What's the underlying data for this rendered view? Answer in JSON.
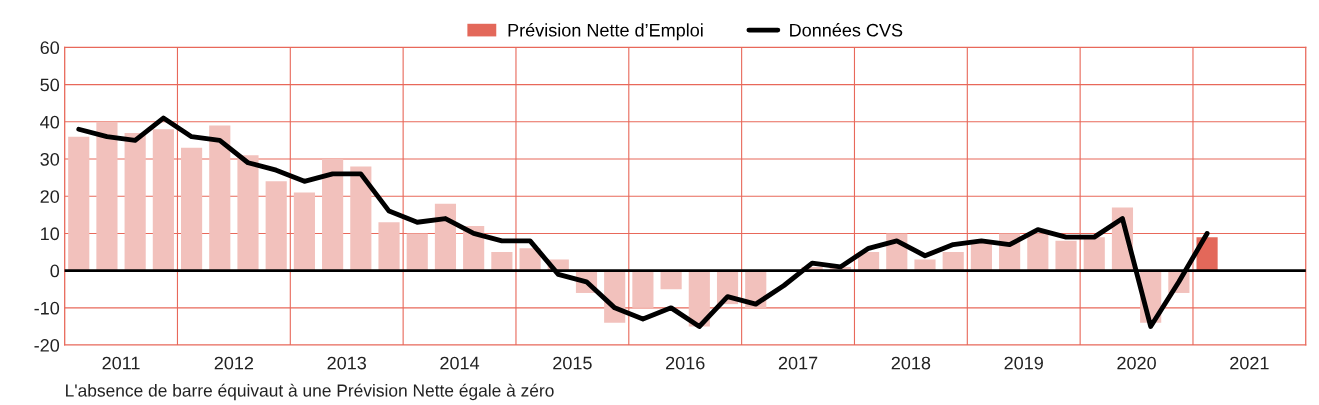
{
  "chart_data": {
    "type": "bar",
    "x": [
      2011.125,
      2011.375,
      2011.625,
      2011.875,
      2012.125,
      2012.375,
      2012.625,
      2012.875,
      2013.125,
      2013.375,
      2013.625,
      2013.875,
      2014.125,
      2014.375,
      2014.625,
      2014.875,
      2015.125,
      2015.375,
      2015.625,
      2015.875,
      2016.125,
      2016.375,
      2016.625,
      2016.875,
      2017.125,
      2017.375,
      2017.625,
      2017.875,
      2018.125,
      2018.375,
      2018.625,
      2018.875,
      2019.125,
      2019.375,
      2019.625,
      2019.875,
      2020.125,
      2020.375,
      2020.625,
      2020.875,
      2021.125
    ],
    "series": [
      {
        "name": "Prévision Nette d’Emploi",
        "color": "#e3685a",
        "colors": [
          "#f2c1bc",
          "#f2c1bc",
          "#f2c1bc",
          "#f2c1bc",
          "#f2c1bc",
          "#f2c1bc",
          "#f2c1bc",
          "#f2c1bc",
          "#f2c1bc",
          "#f2c1bc",
          "#f2c1bc",
          "#f2c1bc",
          "#f2c1bc",
          "#f2c1bc",
          "#f2c1bc",
          "#f2c1bc",
          "#f2c1bc",
          "#f2c1bc",
          "#f2c1bc",
          "#f2c1bc",
          "#f2c1bc",
          "#f2c1bc",
          "#f2c1bc",
          "#f2c1bc",
          "#f2c1bc",
          "#f2c1bc",
          "#f2c1bc",
          "#f2c1bc",
          "#f2c1bc",
          "#f2c1bc",
          "#f2c1bc",
          "#f2c1bc",
          "#f2c1bc",
          "#f2c1bc",
          "#f2c1bc",
          "#f2c1bc",
          "#f2c1bc",
          "#f2c1bc",
          "#f2c1bc",
          "#f2c1bc",
          "#e3685a"
        ],
        "values": [
          36,
          40,
          37,
          38,
          33,
          39,
          31,
          24,
          21,
          30,
          28,
          13,
          10,
          18,
          12,
          5,
          6,
          3,
          -6,
          -14,
          -10,
          -5,
          -15,
          -9,
          -10,
          0,
          1,
          1,
          5,
          10,
          3,
          5,
          8,
          10,
          10,
          8,
          9,
          17,
          -14,
          -6,
          9
        ]
      },
      {
        "name": "Données CVS",
        "type": "line",
        "color": "#000000",
        "values": [
          38,
          36,
          35,
          41,
          36,
          35,
          29,
          27,
          24,
          26,
          26,
          16,
          13,
          14,
          10,
          8,
          8,
          -1,
          -3,
          -10,
          -13,
          -10,
          -15,
          -7,
          -9,
          -4,
          2,
          1,
          6,
          8,
          4,
          7,
          8,
          7,
          11,
          9,
          9,
          14,
          -15,
          -3,
          10
        ]
      }
    ],
    "xlim": [
      2011,
      2022
    ],
    "xticks": [
      {
        "value": 2011,
        "label": null
      },
      {
        "value": 2012,
        "label": null
      },
      {
        "value": 2013,
        "label": null
      },
      {
        "value": 2014,
        "label": null
      },
      {
        "value": 2015,
        "label": null
      },
      {
        "value": 2016,
        "label": null
      },
      {
        "value": 2017,
        "label": null
      },
      {
        "value": 2018,
        "label": null
      },
      {
        "value": 2019,
        "label": null
      },
      {
        "value": 2020,
        "label": null
      },
      {
        "value": 2021,
        "label": null
      },
      {
        "value": 2022,
        "label": null
      },
      {
        "value": 2011.5,
        "label": "2011"
      },
      {
        "value": 2012.5,
        "label": "2012"
      },
      {
        "value": 2013.5,
        "label": "2013"
      },
      {
        "value": 2014.5,
        "label": "2014"
      },
      {
        "value": 2015.5,
        "label": "2015"
      },
      {
        "value": 2016.5,
        "label": "2016"
      },
      {
        "value": 2017.5,
        "label": "2017"
      },
      {
        "value": 2018.5,
        "label": "2018"
      },
      {
        "value": 2019.5,
        "label": "2019"
      },
      {
        "value": 2020.5,
        "label": "2020"
      },
      {
        "value": 2021.5,
        "label": "2021"
      }
    ],
    "ylim": [
      -20,
      60
    ],
    "yticks": [
      -20,
      -10,
      0,
      10,
      20,
      30,
      40,
      50,
      60
    ],
    "grid": true,
    "ref_lines": [
      {
        "axis": "y",
        "value": 0,
        "color": "#000000"
      }
    ],
    "legend": "top",
    "annotations": [
      "L'absence de barre équivaut à une Prévision Nette égale à zéro"
    ]
  }
}
